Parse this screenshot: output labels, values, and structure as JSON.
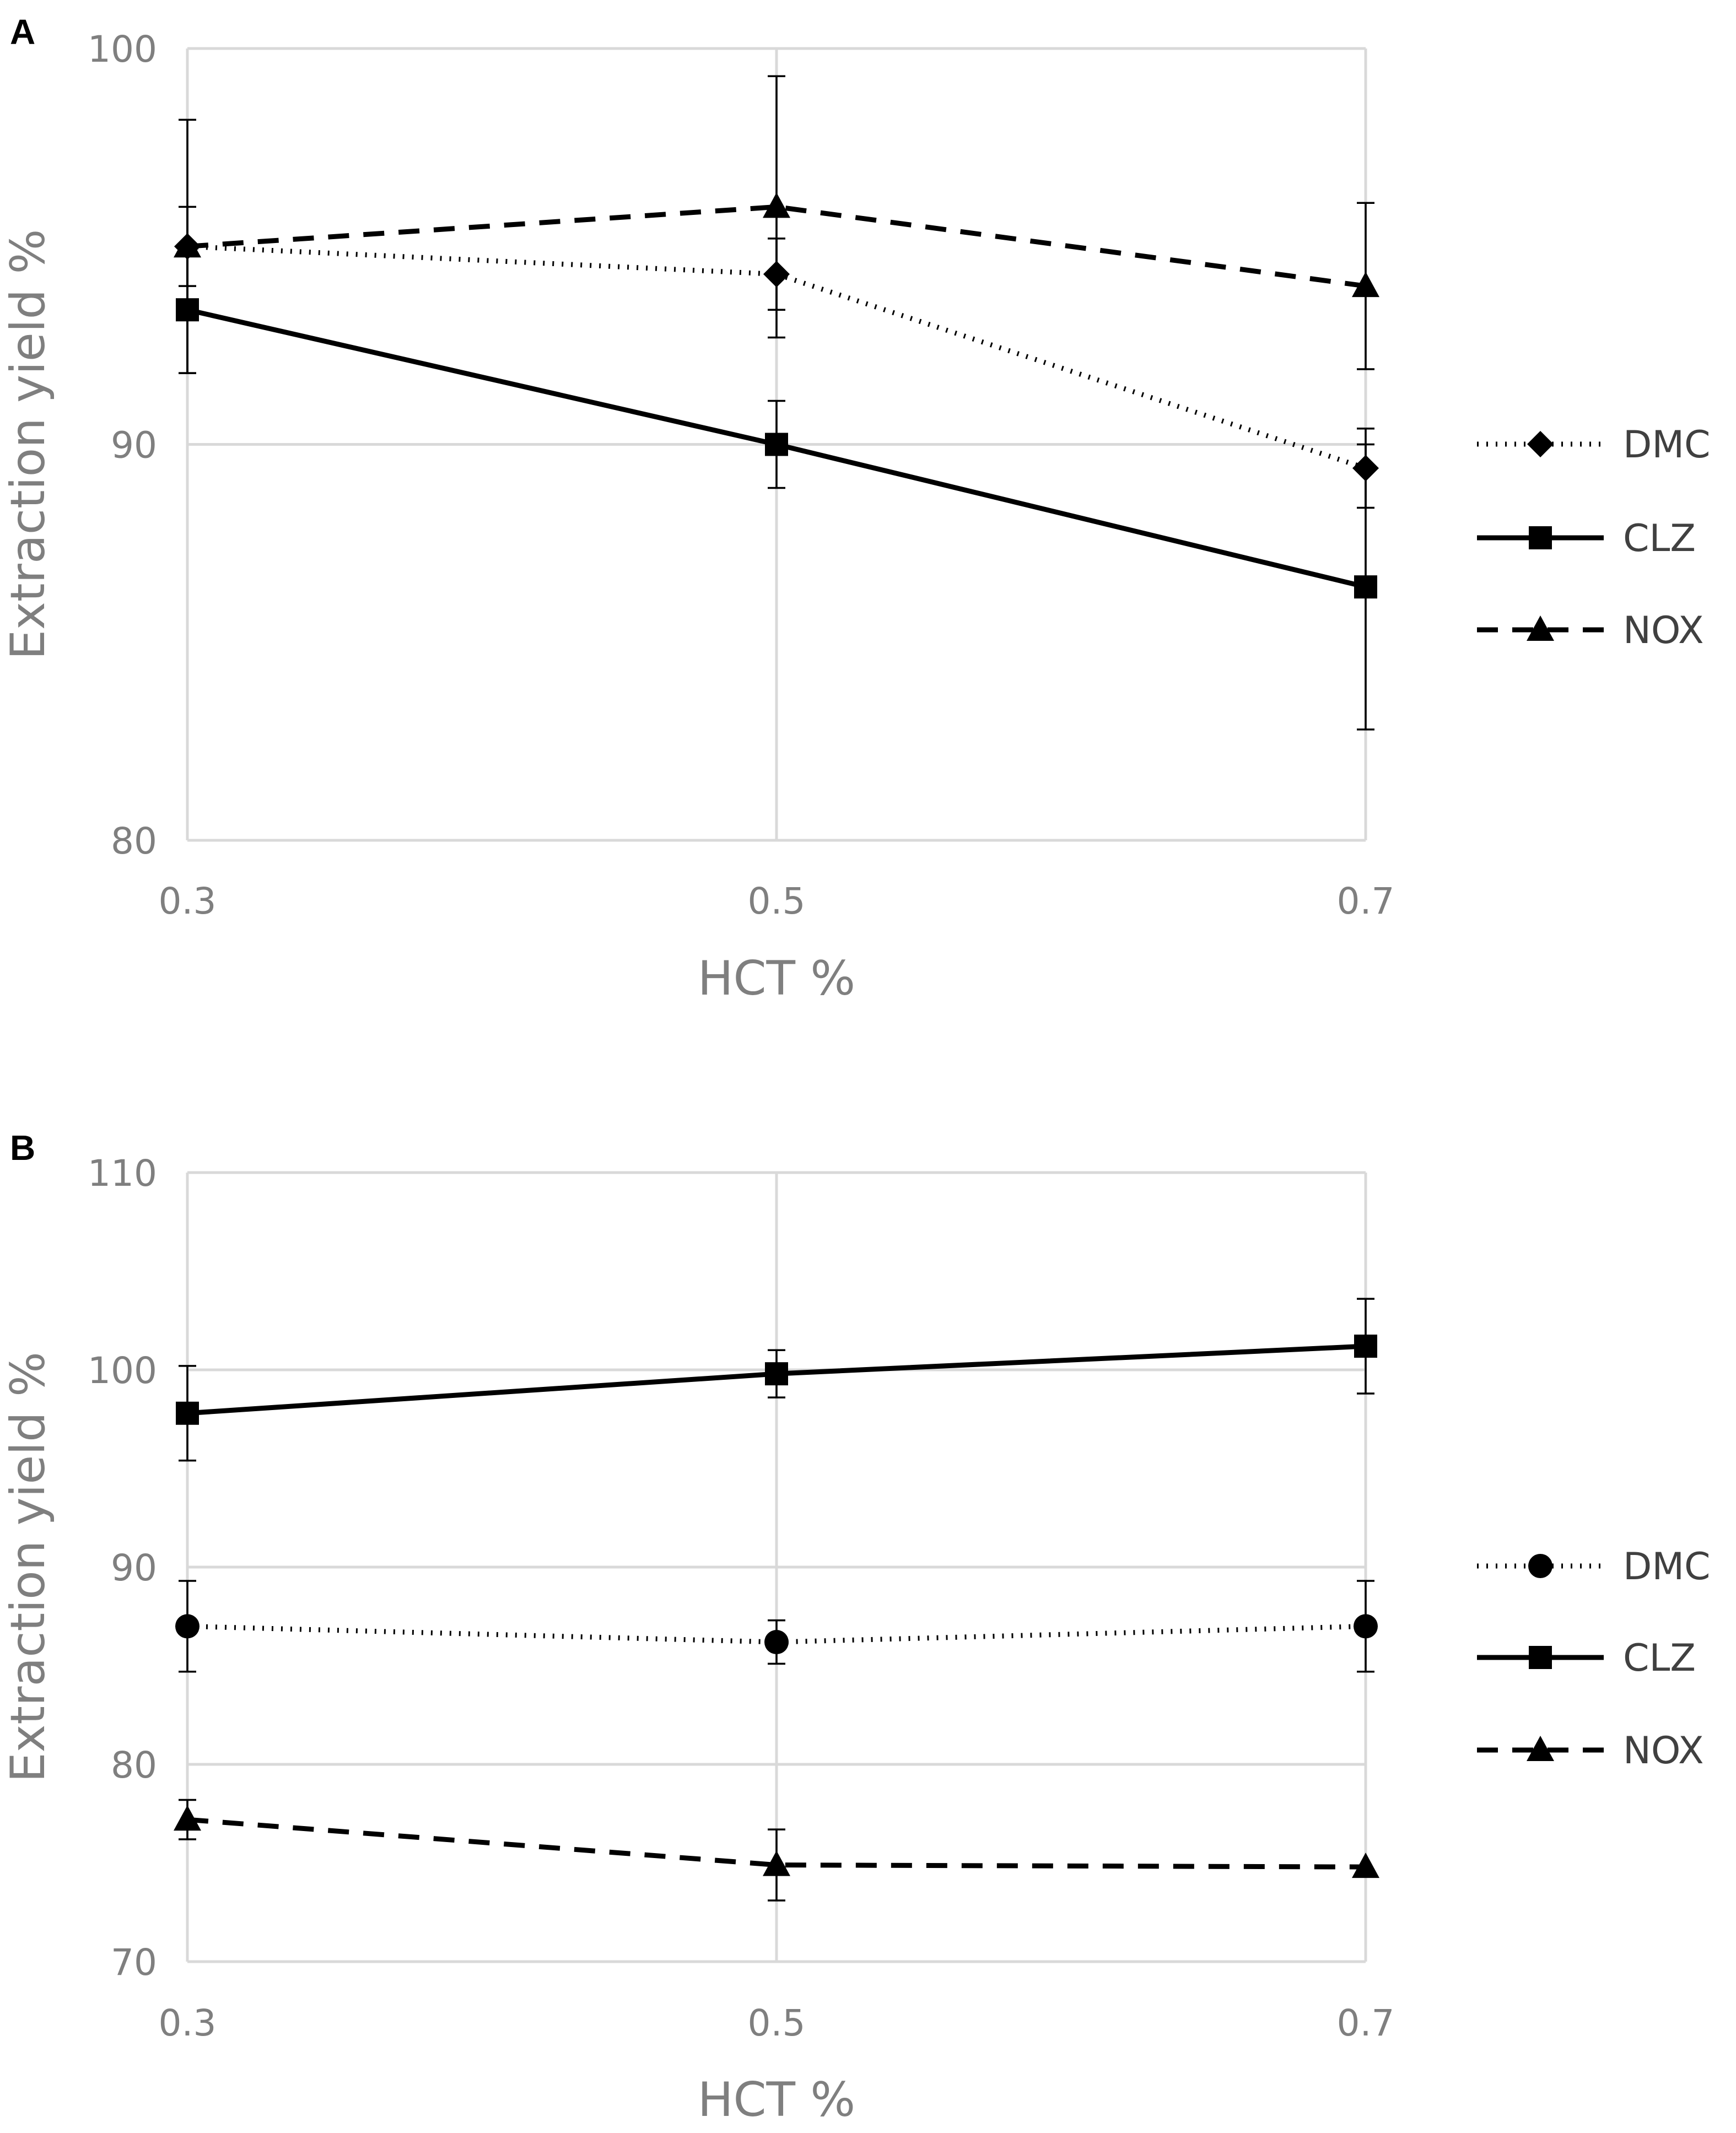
{
  "chart_data": [
    {
      "panel": "A",
      "type": "line",
      "xlabel": "HCT %",
      "ylabel": "Extraction yield %",
      "x": [
        0.3,
        0.5,
        0.7
      ],
      "x_tick_labels": [
        "0.3",
        "0.5",
        "0.7"
      ],
      "ylim": [
        80,
        100
      ],
      "y_ticks": [
        80,
        90,
        100
      ],
      "grid": true,
      "legend_position": "right",
      "series": [
        {
          "name": "DMC",
          "values": [
            95.0,
            94.3,
            89.4
          ],
          "errors": [
            1.0,
            0.9,
            1.0
          ],
          "marker": "diamond",
          "line": "dotted"
        },
        {
          "name": "CLZ",
          "values": [
            93.4,
            90.0,
            86.4
          ],
          "errors": [
            1.6,
            1.1,
            3.6
          ],
          "marker": "square",
          "line": "solid"
        },
        {
          "name": "NOX",
          "values": [
            95.0,
            96.0,
            94.0
          ],
          "errors": [
            3.2,
            3.3,
            2.1
          ],
          "marker": "triangle",
          "line": "dashed"
        }
      ]
    },
    {
      "panel": "B",
      "type": "line",
      "xlabel": "HCT %",
      "ylabel": "Extraction yield %",
      "x": [
        0.3,
        0.5,
        0.7
      ],
      "x_tick_labels": [
        "0.3",
        "0.5",
        "0.7"
      ],
      "ylim": [
        70,
        110
      ],
      "y_ticks": [
        70,
        80,
        90,
        100,
        110
      ],
      "grid": true,
      "legend_position": "right",
      "series": [
        {
          "name": "DMC",
          "values": [
            87.0,
            86.2,
            87.0
          ],
          "errors": [
            2.3,
            1.1,
            2.3
          ],
          "marker": "circle",
          "line": "dotted"
        },
        {
          "name": "CLZ",
          "values": [
            97.8,
            99.8,
            101.2
          ],
          "errors": [
            2.4,
            1.2,
            2.4
          ],
          "marker": "square",
          "line": "solid"
        },
        {
          "name": "NOX",
          "values": [
            77.2,
            74.9,
            74.8
          ],
          "errors": [
            1.0,
            1.8,
            0.0
          ],
          "marker": "triangle",
          "line": "dashed"
        }
      ]
    }
  ]
}
